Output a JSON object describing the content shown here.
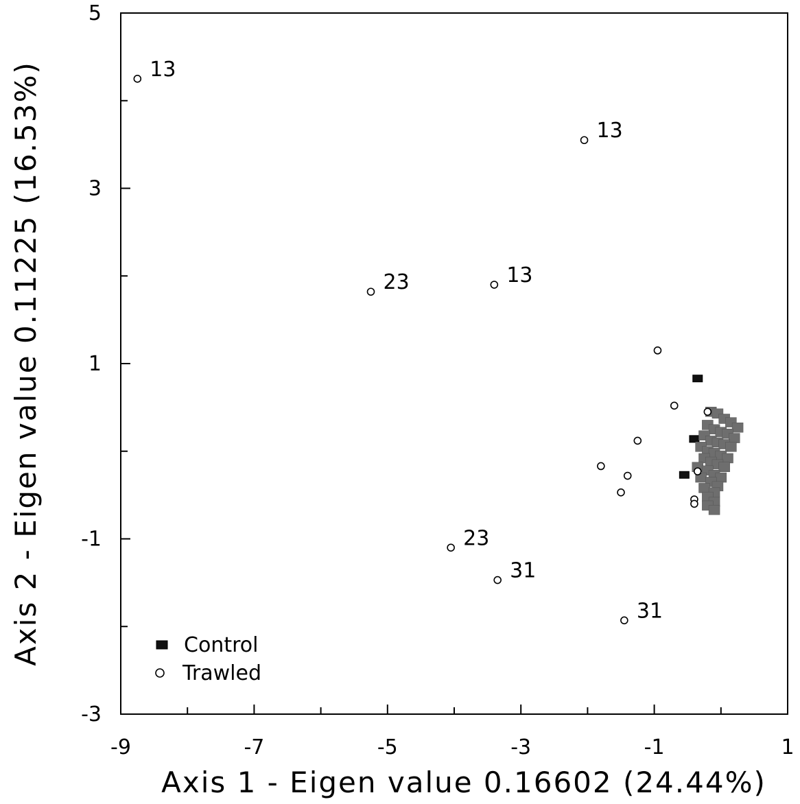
{
  "chart_data": {
    "type": "scatter",
    "xlabel": "Axis 1 - Eigen value 0.16602 (24.44%)",
    "ylabel": "Axis 2 - Eigen value 0.11225 (16.53%)",
    "xlim": [
      -9,
      1
    ],
    "ylim": [
      -3,
      5
    ],
    "x_ticks": [
      "-9",
      "-7",
      "-5",
      "-3",
      "-1",
      "1"
    ],
    "y_ticks": [
      "-3",
      "-1",
      "1",
      "3",
      "5"
    ],
    "legend_position": "bottom-left",
    "series": [
      {
        "name": "Control",
        "marker": "filled-square",
        "color": "#111111",
        "points": [
          {
            "x": -0.35,
            "y": 0.83
          },
          {
            "x": -0.4,
            "y": 0.14
          },
          {
            "x": -0.55,
            "y": -0.27
          },
          {
            "x": -0.15,
            "y": 0.45
          },
          {
            "x": -0.05,
            "y": 0.43
          },
          {
            "x": 0.05,
            "y": 0.37
          },
          {
            "x": 0.15,
            "y": 0.33
          },
          {
            "x": 0.25,
            "y": 0.27
          },
          {
            "x": -0.2,
            "y": 0.3
          },
          {
            "x": -0.1,
            "y": 0.25
          },
          {
            "x": 0.0,
            "y": 0.22
          },
          {
            "x": 0.1,
            "y": 0.2
          },
          {
            "x": 0.2,
            "y": 0.15
          },
          {
            "x": -0.25,
            "y": 0.18
          },
          {
            "x": -0.15,
            "y": 0.12
          },
          {
            "x": -0.05,
            "y": 0.1
          },
          {
            "x": 0.05,
            "y": 0.08
          },
          {
            "x": 0.15,
            "y": 0.05
          },
          {
            "x": -0.3,
            "y": 0.05
          },
          {
            "x": -0.2,
            "y": 0.0
          },
          {
            "x": -0.1,
            "y": -0.02
          },
          {
            "x": 0.0,
            "y": -0.05
          },
          {
            "x": 0.1,
            "y": -0.08
          },
          {
            "x": -0.25,
            "y": -0.08
          },
          {
            "x": -0.15,
            "y": -0.12
          },
          {
            "x": -0.05,
            "y": -0.15
          },
          {
            "x": 0.05,
            "y": -0.18
          },
          {
            "x": -0.35,
            "y": -0.18
          },
          {
            "x": -0.2,
            "y": -0.22
          },
          {
            "x": -0.1,
            "y": -0.27
          },
          {
            "x": 0.0,
            "y": -0.3
          },
          {
            "x": -0.3,
            "y": -0.3
          },
          {
            "x": -0.15,
            "y": -0.35
          },
          {
            "x": -0.05,
            "y": -0.4
          },
          {
            "x": -0.25,
            "y": -0.42
          },
          {
            "x": -0.1,
            "y": -0.47
          },
          {
            "x": -0.2,
            "y": -0.52
          },
          {
            "x": -0.1,
            "y": -0.58
          },
          {
            "x": -0.2,
            "y": -0.62
          },
          {
            "x": -0.1,
            "y": -0.67
          }
        ]
      },
      {
        "name": "Trawled",
        "marker": "open-circle",
        "color": "#000000",
        "points": [
          {
            "x": -8.75,
            "y": 4.25,
            "label": "13"
          },
          {
            "x": -2.05,
            "y": 3.55,
            "label": "13"
          },
          {
            "x": -5.25,
            "y": 1.82,
            "label": "23"
          },
          {
            "x": -3.4,
            "y": 1.9,
            "label": "13"
          },
          {
            "x": -4.05,
            "y": -1.1,
            "label": "23"
          },
          {
            "x": -3.35,
            "y": -1.47,
            "label": "31"
          },
          {
            "x": -1.45,
            "y": -1.93,
            "label": "31"
          },
          {
            "x": -0.95,
            "y": 1.15
          },
          {
            "x": -0.7,
            "y": 0.52
          },
          {
            "x": -1.25,
            "y": 0.12
          },
          {
            "x": -1.8,
            "y": -0.17
          },
          {
            "x": -1.4,
            "y": -0.28
          },
          {
            "x": -1.5,
            "y": -0.47
          },
          {
            "x": -0.2,
            "y": 0.45
          },
          {
            "x": -0.35,
            "y": -0.23
          },
          {
            "x": -0.4,
            "y": -0.55
          },
          {
            "x": -0.4,
            "y": -0.6
          }
        ]
      }
    ]
  }
}
